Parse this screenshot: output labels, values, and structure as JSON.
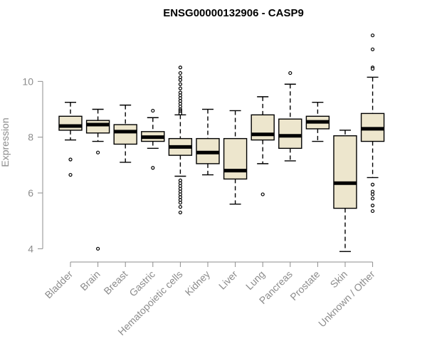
{
  "chart_data": {
    "type": "box",
    "title": "ENSG00000132906 - CASP9",
    "ylabel": "Expression",
    "xlabel": "",
    "ylim": [
      3.6,
      12.0
    ],
    "yticks": [
      4,
      6,
      8,
      10
    ],
    "ytick_labels": [
      "4",
      "6",
      "8",
      "10"
    ],
    "grid": false,
    "colors": {
      "box_fill": "#ede6cd",
      "box_stroke": "#000000",
      "axis": "#8c8c8c",
      "median": "#000000"
    },
    "categories": [
      "Bladder",
      "Brain",
      "Breast",
      "Gastric",
      "Hematopoietic cells",
      "Kidney",
      "Liver",
      "Lung",
      "Pancreas",
      "Prostate",
      "Skin",
      "Unknown / Other"
    ],
    "boxes": [
      {
        "name": "Bladder",
        "whisker_low": 7.9,
        "q1": 8.25,
        "median": 8.4,
        "q3": 8.75,
        "whisker_high": 9.25,
        "outliers": [
          7.2,
          6.65
        ]
      },
      {
        "name": "Brain",
        "whisker_low": 7.85,
        "q1": 8.15,
        "median": 8.45,
        "q3": 8.6,
        "whisker_high": 9.0,
        "outliers": [
          7.45,
          4.0
        ]
      },
      {
        "name": "Breast",
        "whisker_low": 7.1,
        "q1": 7.75,
        "median": 8.2,
        "q3": 8.45,
        "whisker_high": 9.15,
        "outliers": []
      },
      {
        "name": "Gastric",
        "whisker_low": 7.6,
        "q1": 7.85,
        "median": 8.0,
        "q3": 8.2,
        "whisker_high": 8.7,
        "outliers": [
          8.95,
          6.9
        ]
      },
      {
        "name": "Hematopoietic cells",
        "whisker_low": 6.6,
        "q1": 7.35,
        "median": 7.65,
        "q3": 7.95,
        "whisker_high": 8.8,
        "outliers": [
          10.5,
          10.3,
          10.15,
          10.05,
          9.9,
          9.75,
          9.6,
          9.5,
          9.4,
          9.3,
          9.2,
          9.1,
          9.0,
          8.95,
          8.9,
          8.85,
          6.45,
          6.35,
          6.25,
          6.15,
          6.05,
          5.95,
          5.85,
          5.75,
          5.65,
          5.5,
          5.3
        ]
      },
      {
        "name": "Kidney",
        "whisker_low": 6.65,
        "q1": 7.05,
        "median": 7.45,
        "q3": 7.95,
        "whisker_high": 9.0,
        "outliers": []
      },
      {
        "name": "Liver",
        "whisker_low": 5.6,
        "q1": 6.5,
        "median": 6.8,
        "q3": 7.95,
        "whisker_high": 8.95,
        "outliers": []
      },
      {
        "name": "Lung",
        "whisker_low": 7.05,
        "q1": 7.9,
        "median": 8.1,
        "q3": 8.8,
        "whisker_high": 9.45,
        "outliers": [
          5.95
        ]
      },
      {
        "name": "Pancreas",
        "whisker_low": 7.15,
        "q1": 7.6,
        "median": 8.05,
        "q3": 8.65,
        "whisker_high": 9.9,
        "outliers": [
          10.3
        ]
      },
      {
        "name": "Prostate",
        "whisker_low": 7.85,
        "q1": 8.3,
        "median": 8.55,
        "q3": 8.75,
        "whisker_high": 9.25,
        "outliers": []
      },
      {
        "name": "Skin",
        "whisker_low": 3.9,
        "q1": 5.45,
        "median": 6.35,
        "q3": 8.05,
        "whisker_high": 8.25,
        "outliers": []
      },
      {
        "name": "Unknown / Other",
        "whisker_low": 6.55,
        "q1": 7.85,
        "median": 8.3,
        "q3": 8.85,
        "whisker_high": 10.15,
        "outliers": [
          11.65,
          11.15,
          10.5,
          10.45,
          6.3,
          6.05,
          5.95,
          5.8,
          5.55,
          5.35
        ]
      }
    ]
  }
}
